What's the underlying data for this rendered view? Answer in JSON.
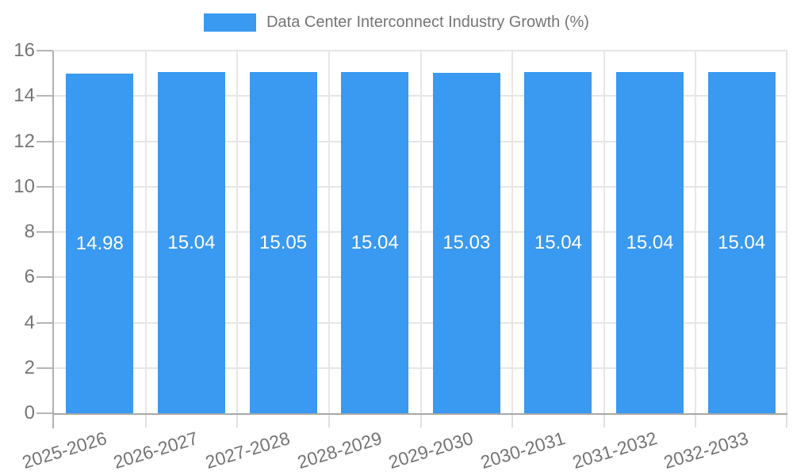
{
  "legend": {
    "label": "Data Center Interconnect Industry Growth (%)"
  },
  "chart_data": {
    "type": "bar",
    "title": "Data Center Interconnect Industry Growth (%)",
    "categories": [
      "2025-2026",
      "2026-2027",
      "2027-2028",
      "2028-2029",
      "2029-2030",
      "2030-2031",
      "2031-2032",
      "2032-2033"
    ],
    "values": [
      14.98,
      15.04,
      15.05,
      15.04,
      15.03,
      15.04,
      15.04,
      15.04
    ],
    "value_labels": [
      "14.98",
      "15.04",
      "15.05",
      "15.04",
      "15.03",
      "15.04",
      "15.04",
      "15.04"
    ],
    "xlabel": "",
    "ylabel": "",
    "ylim": [
      0,
      16
    ],
    "yticks": [
      0,
      2,
      4,
      6,
      8,
      10,
      12,
      14,
      16
    ],
    "grid": true,
    "legend_position": "top",
    "colors": {
      "bar": "#3a99f0",
      "tick_text": "#757575",
      "legend_text": "#757575",
      "gridline": "#e6e6e6",
      "axis_line": "#b0b0b0",
      "baseline": "#a8a8a8",
      "value_label_text": "#ffffff",
      "background": "#ffffff"
    }
  }
}
